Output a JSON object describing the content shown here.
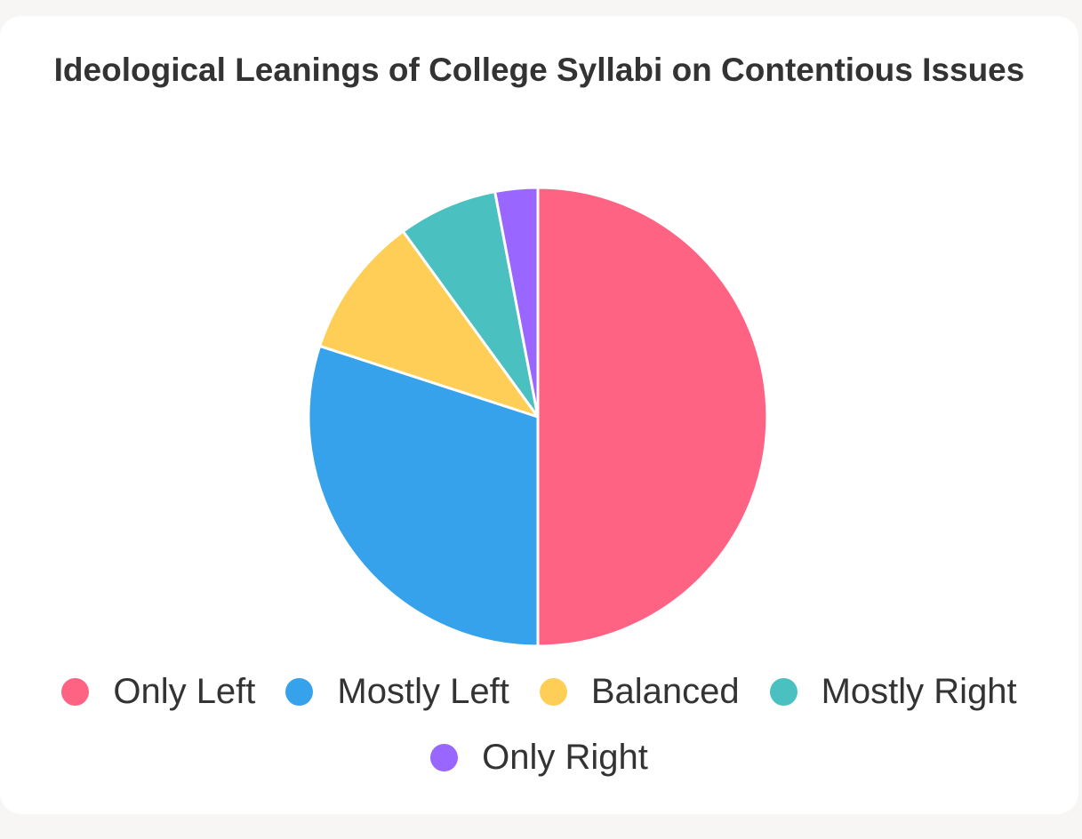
{
  "chart_data": {
    "type": "pie",
    "title": "Ideological Leanings of College Syllabi on Contentious Issues",
    "categories": [
      "Only Left",
      "Mostly Left",
      "Balanced",
      "Mostly Right",
      "Only Right"
    ],
    "values": [
      50,
      30,
      10,
      7,
      3
    ],
    "colors": [
      "#ff6384",
      "#36a2eb",
      "#ffce56",
      "#4bc0c0",
      "#9966ff"
    ],
    "legend_position": "bottom"
  },
  "legend": {
    "items": [
      {
        "label": "Only Left",
        "color": "#ff6384"
      },
      {
        "label": "Mostly Left",
        "color": "#36a2eb"
      },
      {
        "label": "Balanced",
        "color": "#ffce56"
      },
      {
        "label": "Mostly Right",
        "color": "#4bc0c0"
      },
      {
        "label": "Only Right",
        "color": "#9966ff"
      }
    ]
  }
}
